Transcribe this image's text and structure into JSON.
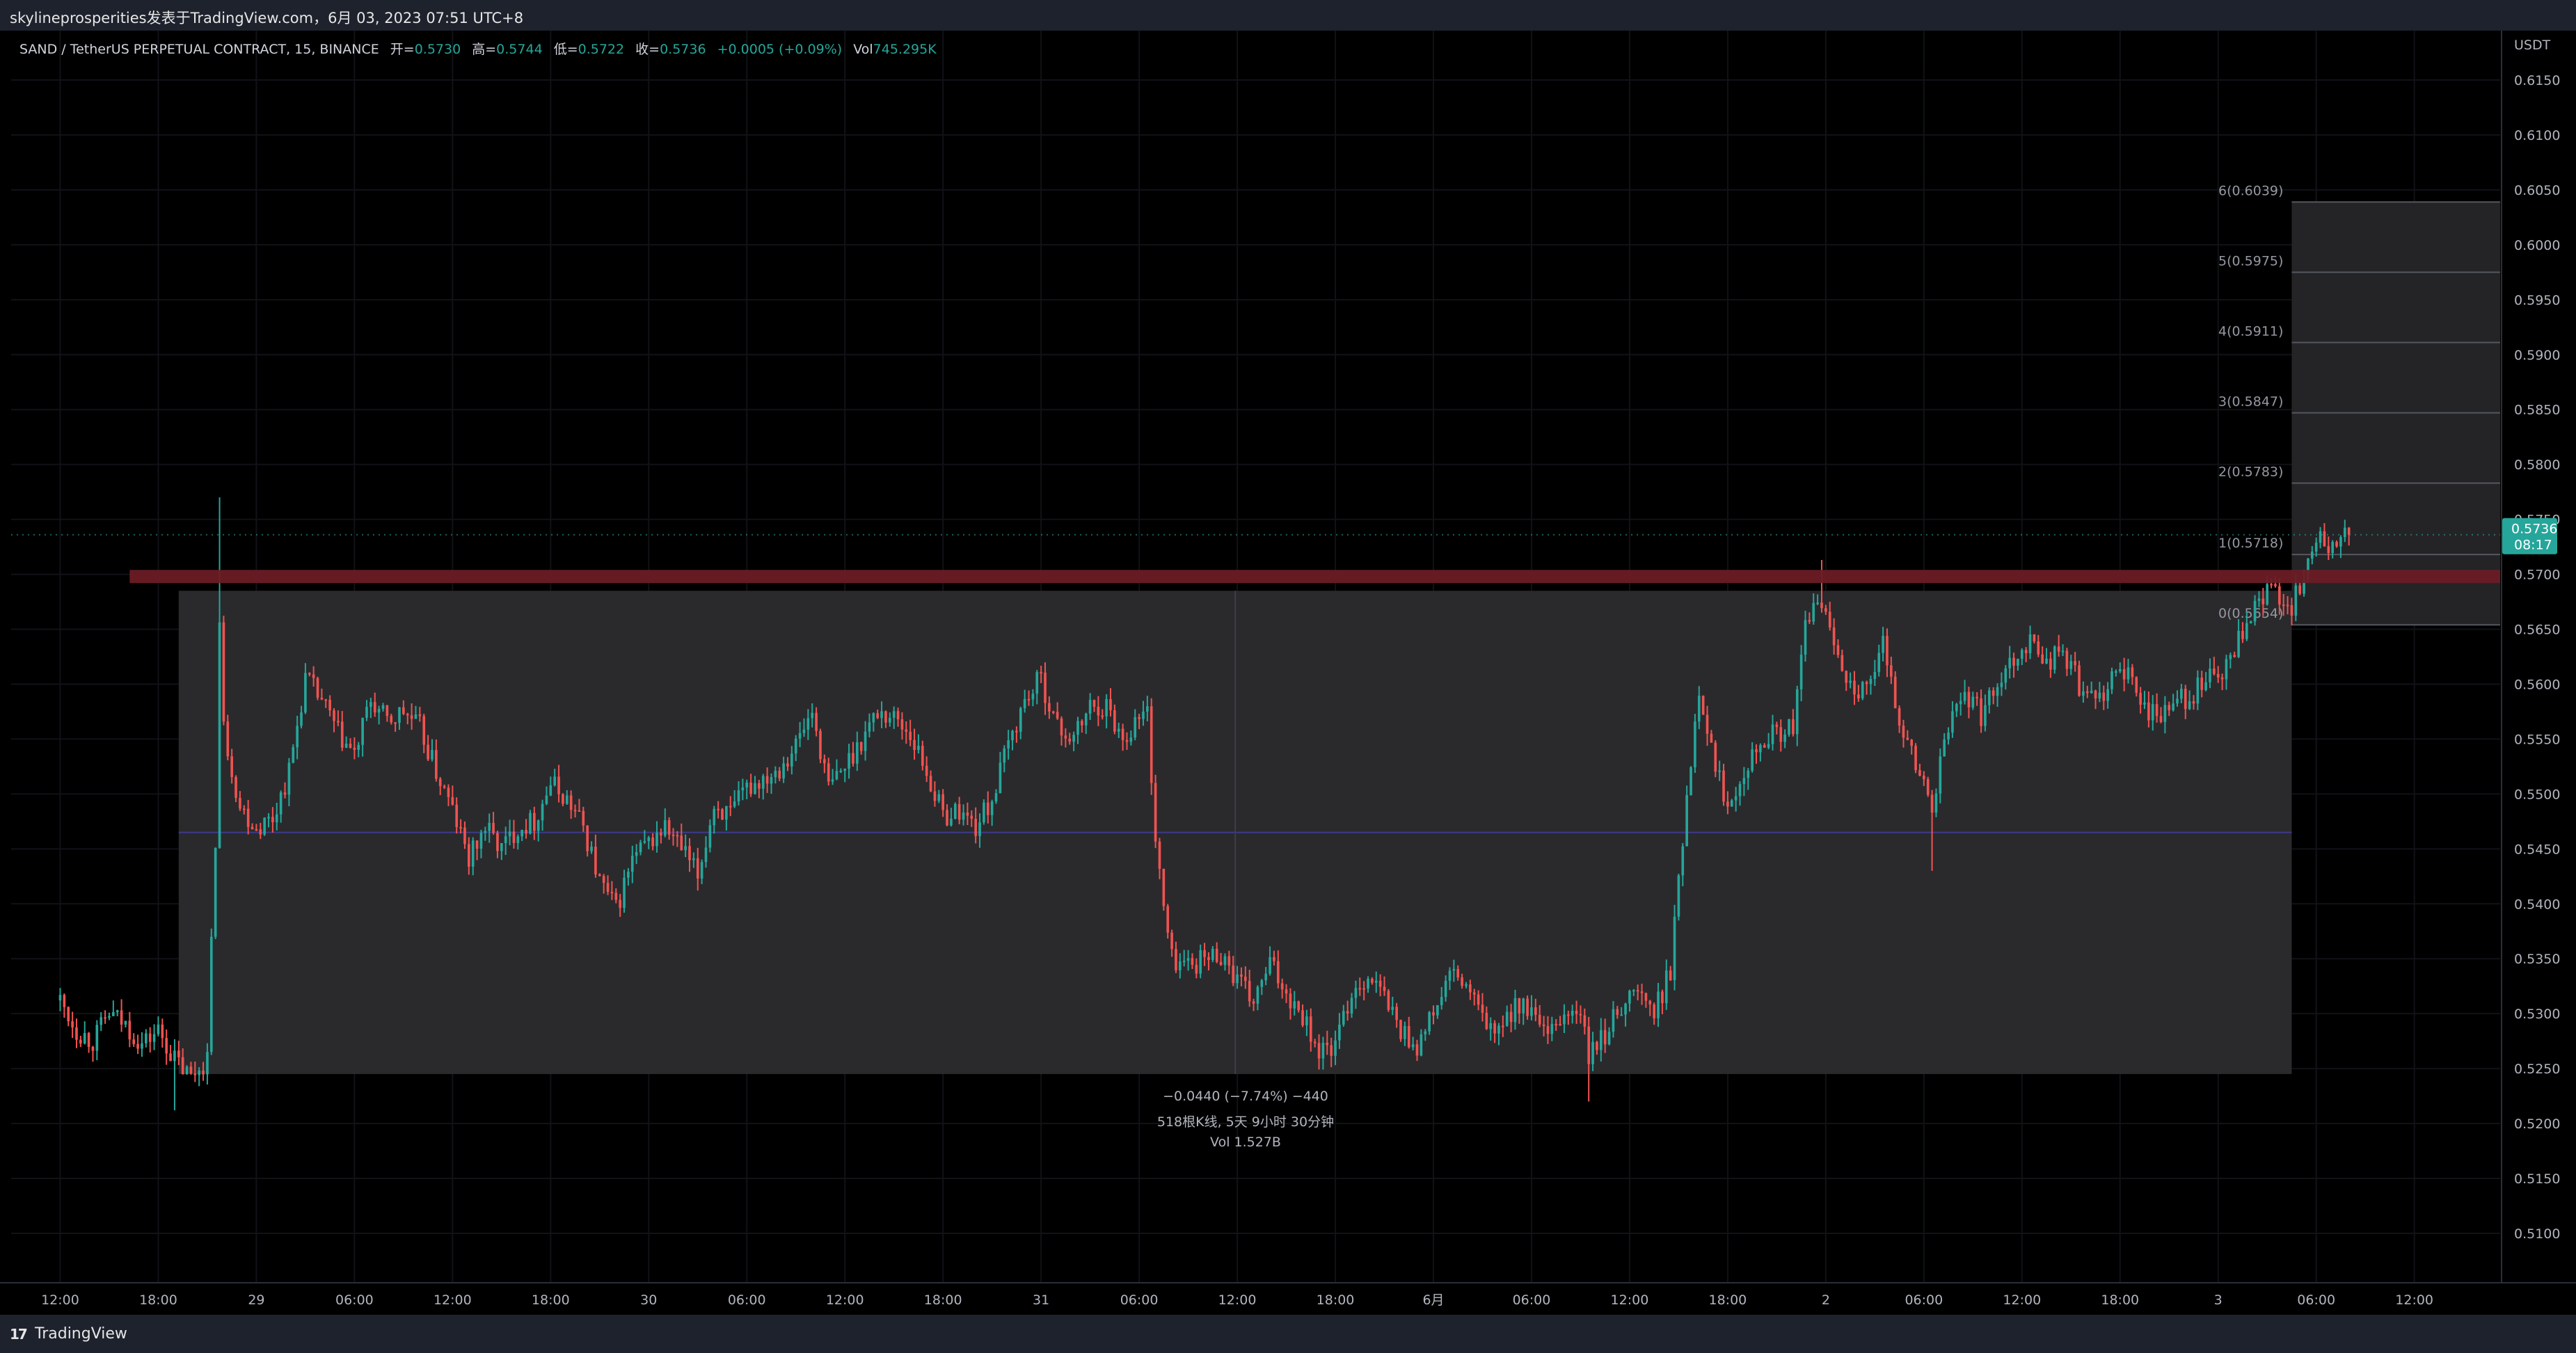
{
  "header": {
    "attribution": "skylineprosperities发表于TradingView.com，6月 03, 2023 07:51 UTC+8"
  },
  "legend": {
    "symbol": "SAND / TetherUS PERPETUAL CONTRACT, 15, BINANCE",
    "open_label": "开=",
    "open": "0.5730",
    "high_label": "高=",
    "high": "0.5744",
    "low_label": "低=",
    "low": "0.5722",
    "close_label": "收=",
    "close": "0.5736",
    "change": "+0.0005 (+0.09%)",
    "vol_label": "Vol",
    "vol": "745.295K"
  },
  "footer": {
    "brand": "TradingView"
  },
  "colors": {
    "up": "#26a69a",
    "down": "#ef5350",
    "background": "#000000",
    "range_box": "#2a2a2d",
    "resistance_band": "#6b1c25",
    "grid": "#101216",
    "price_tag": "#26a69a",
    "midline": "#3f3a8f"
  },
  "chart_data": {
    "type": "candlestick",
    "title": "SAND / TetherUS PERPETUAL CONTRACT, 15, BINANCE",
    "y_axis": {
      "unit": "USDT",
      "ylim": [
        0.5055,
        0.6195
      ],
      "ticks": [
        "0.6150",
        "0.6100",
        "0.6050",
        "0.6000",
        "0.5950",
        "0.5900",
        "0.5850",
        "0.5800",
        "0.5750",
        "0.5700",
        "0.5650",
        "0.5600",
        "0.5550",
        "0.5500",
        "0.5450",
        "0.5400",
        "0.5350",
        "0.5300",
        "0.5250",
        "0.5200",
        "0.5150",
        "0.5100"
      ]
    },
    "x_axis": {
      "labels": [
        "12:00",
        "18:00",
        "29",
        "06:00",
        "12:00",
        "18:00",
        "30",
        "06:00",
        "12:00",
        "18:00",
        "31",
        "06:00",
        "12:00",
        "18:00",
        "6月",
        "06:00",
        "12:00",
        "18:00",
        "2",
        "06:00",
        "12:00",
        "18:00",
        "3",
        "06:00",
        "12:00"
      ],
      "label_index": [
        0,
        24,
        48,
        72,
        96,
        120,
        144,
        168,
        192,
        216,
        240,
        264,
        288,
        312,
        336,
        360,
        384,
        408,
        432,
        456,
        480,
        504,
        528,
        552,
        576
      ],
      "range": [
        -12,
        597
      ]
    },
    "grid": true,
    "last_price": {
      "value": "0.5736",
      "countdown": "08:17"
    },
    "resistance_band": {
      "from": 0.5692,
      "to": 0.5704
    },
    "range_measure": {
      "top": 0.5685,
      "bottom": 0.5245,
      "midline": 0.5465,
      "from_index": 29,
      "to_index": 546,
      "summary_1": "−0.0440 (−7.74%) −440",
      "summary_2": "518根K线, 5天 9小时 30分钟",
      "summary_3": "Vol 1.527B"
    },
    "fib_levels": [
      {
        "label": "0(0.5654)",
        "value": 0.5654
      },
      {
        "label": "1(0.5718)",
        "value": 0.5718
      },
      {
        "label": "2(0.5783)",
        "value": 0.5783
      },
      {
        "label": "3(0.5847)",
        "value": 0.5847
      },
      {
        "label": "4(0.5911)",
        "value": 0.5911
      },
      {
        "label": "5(0.5975)",
        "value": 0.5975
      },
      {
        "label": "6(0.6039)",
        "value": 0.6039
      }
    ],
    "fib_from_index": 546,
    "fib_to_index": 597,
    "anchors": [
      [
        0,
        0.5312
      ],
      [
        4,
        0.5285
      ],
      [
        8,
        0.5275
      ],
      [
        12,
        0.53
      ],
      [
        16,
        0.529
      ],
      [
        20,
        0.5272
      ],
      [
        24,
        0.5285
      ],
      [
        28,
        0.5258
      ],
      [
        32,
        0.5242
      ],
      [
        36,
        0.526
      ],
      [
        38,
        0.546
      ],
      [
        39,
        0.5655
      ],
      [
        40,
        0.556
      ],
      [
        44,
        0.5488
      ],
      [
        48,
        0.547
      ],
      [
        52,
        0.5478
      ],
      [
        56,
        0.552
      ],
      [
        60,
        0.5605
      ],
      [
        64,
        0.5585
      ],
      [
        68,
        0.5555
      ],
      [
        72,
        0.5535
      ],
      [
        76,
        0.5585
      ],
      [
        80,
        0.5565
      ],
      [
        84,
        0.5575
      ],
      [
        88,
        0.556
      ],
      [
        92,
        0.552
      ],
      [
        96,
        0.5485
      ],
      [
        100,
        0.544
      ],
      [
        104,
        0.547
      ],
      [
        108,
        0.545
      ],
      [
        112,
        0.547
      ],
      [
        116,
        0.5475
      ],
      [
        120,
        0.551
      ],
      [
        124,
        0.5495
      ],
      [
        128,
        0.547
      ],
      [
        132,
        0.542
      ],
      [
        136,
        0.5395
      ],
      [
        140,
        0.544
      ],
      [
        144,
        0.5455
      ],
      [
        148,
        0.547
      ],
      [
        152,
        0.545
      ],
      [
        156,
        0.5425
      ],
      [
        160,
        0.549
      ],
      [
        164,
        0.548
      ],
      [
        168,
        0.5505
      ],
      [
        172,
        0.5515
      ],
      [
        176,
        0.5525
      ],
      [
        180,
        0.5545
      ],
      [
        184,
        0.5575
      ],
      [
        188,
        0.5505
      ],
      [
        192,
        0.5525
      ],
      [
        196,
        0.555
      ],
      [
        200,
        0.5575
      ],
      [
        204,
        0.557
      ],
      [
        208,
        0.5555
      ],
      [
        212,
        0.552
      ],
      [
        216,
        0.548
      ],
      [
        220,
        0.5485
      ],
      [
        224,
        0.547
      ],
      [
        228,
        0.5495
      ],
      [
        232,
        0.5545
      ],
      [
        236,
        0.5585
      ],
      [
        240,
        0.5605
      ],
      [
        244,
        0.556
      ],
      [
        248,
        0.555
      ],
      [
        252,
        0.558
      ],
      [
        256,
        0.558
      ],
      [
        260,
        0.555
      ],
      [
        264,
        0.557
      ],
      [
        266,
        0.5575
      ],
      [
        268,
        0.546
      ],
      [
        270,
        0.5395
      ],
      [
        272,
        0.535
      ],
      [
        276,
        0.5345
      ],
      [
        280,
        0.535
      ],
      [
        284,
        0.5355
      ],
      [
        288,
        0.533
      ],
      [
        292,
        0.531
      ],
      [
        296,
        0.5345
      ],
      [
        300,
        0.532
      ],
      [
        304,
        0.53
      ],
      [
        308,
        0.5265
      ],
      [
        312,
        0.527
      ],
      [
        316,
        0.532
      ],
      [
        320,
        0.5335
      ],
      [
        324,
        0.5315
      ],
      [
        328,
        0.5285
      ],
      [
        332,
        0.527
      ],
      [
        336,
        0.53
      ],
      [
        340,
        0.5335
      ],
      [
        344,
        0.5325
      ],
      [
        348,
        0.5295
      ],
      [
        352,
        0.528
      ],
      [
        356,
        0.531
      ],
      [
        360,
        0.53
      ],
      [
        364,
        0.5275
      ],
      [
        368,
        0.53
      ],
      [
        372,
        0.53
      ],
      [
        374,
        0.526
      ],
      [
        378,
        0.528
      ],
      [
        382,
        0.531
      ],
      [
        386,
        0.532
      ],
      [
        390,
        0.53
      ],
      [
        394,
        0.534
      ],
      [
        398,
        0.55
      ],
      [
        401,
        0.56
      ],
      [
        404,
        0.554
      ],
      [
        408,
        0.549
      ],
      [
        412,
        0.5525
      ],
      [
        416,
        0.555
      ],
      [
        420,
        0.5555
      ],
      [
        424,
        0.556
      ],
      [
        427,
        0.565
      ],
      [
        430,
        0.568
      ],
      [
        434,
        0.564
      ],
      [
        438,
        0.56
      ],
      [
        442,
        0.559
      ],
      [
        446,
        0.5635
      ],
      [
        450,
        0.557
      ],
      [
        454,
        0.5525
      ],
      [
        458,
        0.549
      ],
      [
        462,
        0.556
      ],
      [
        466,
        0.5595
      ],
      [
        470,
        0.557
      ],
      [
        474,
        0.5605
      ],
      [
        478,
        0.5625
      ],
      [
        482,
        0.564
      ],
      [
        486,
        0.562
      ],
      [
        490,
        0.563
      ],
      [
        494,
        0.56
      ],
      [
        498,
        0.558
      ],
      [
        502,
        0.561
      ],
      [
        506,
        0.5605
      ],
      [
        510,
        0.558
      ],
      [
        514,
        0.557
      ],
      [
        518,
        0.5585
      ],
      [
        522,
        0.559
      ],
      [
        526,
        0.561
      ],
      [
        528,
        0.56
      ],
      [
        532,
        0.563
      ],
      [
        536,
        0.566
      ],
      [
        540,
        0.5685
      ],
      [
        544,
        0.568
      ],
      [
        546,
        0.567
      ],
      [
        548,
        0.569
      ],
      [
        550,
        0.5715
      ],
      [
        552,
        0.573
      ],
      [
        556,
        0.5725
      ],
      [
        560,
        0.5736
      ]
    ]
  }
}
